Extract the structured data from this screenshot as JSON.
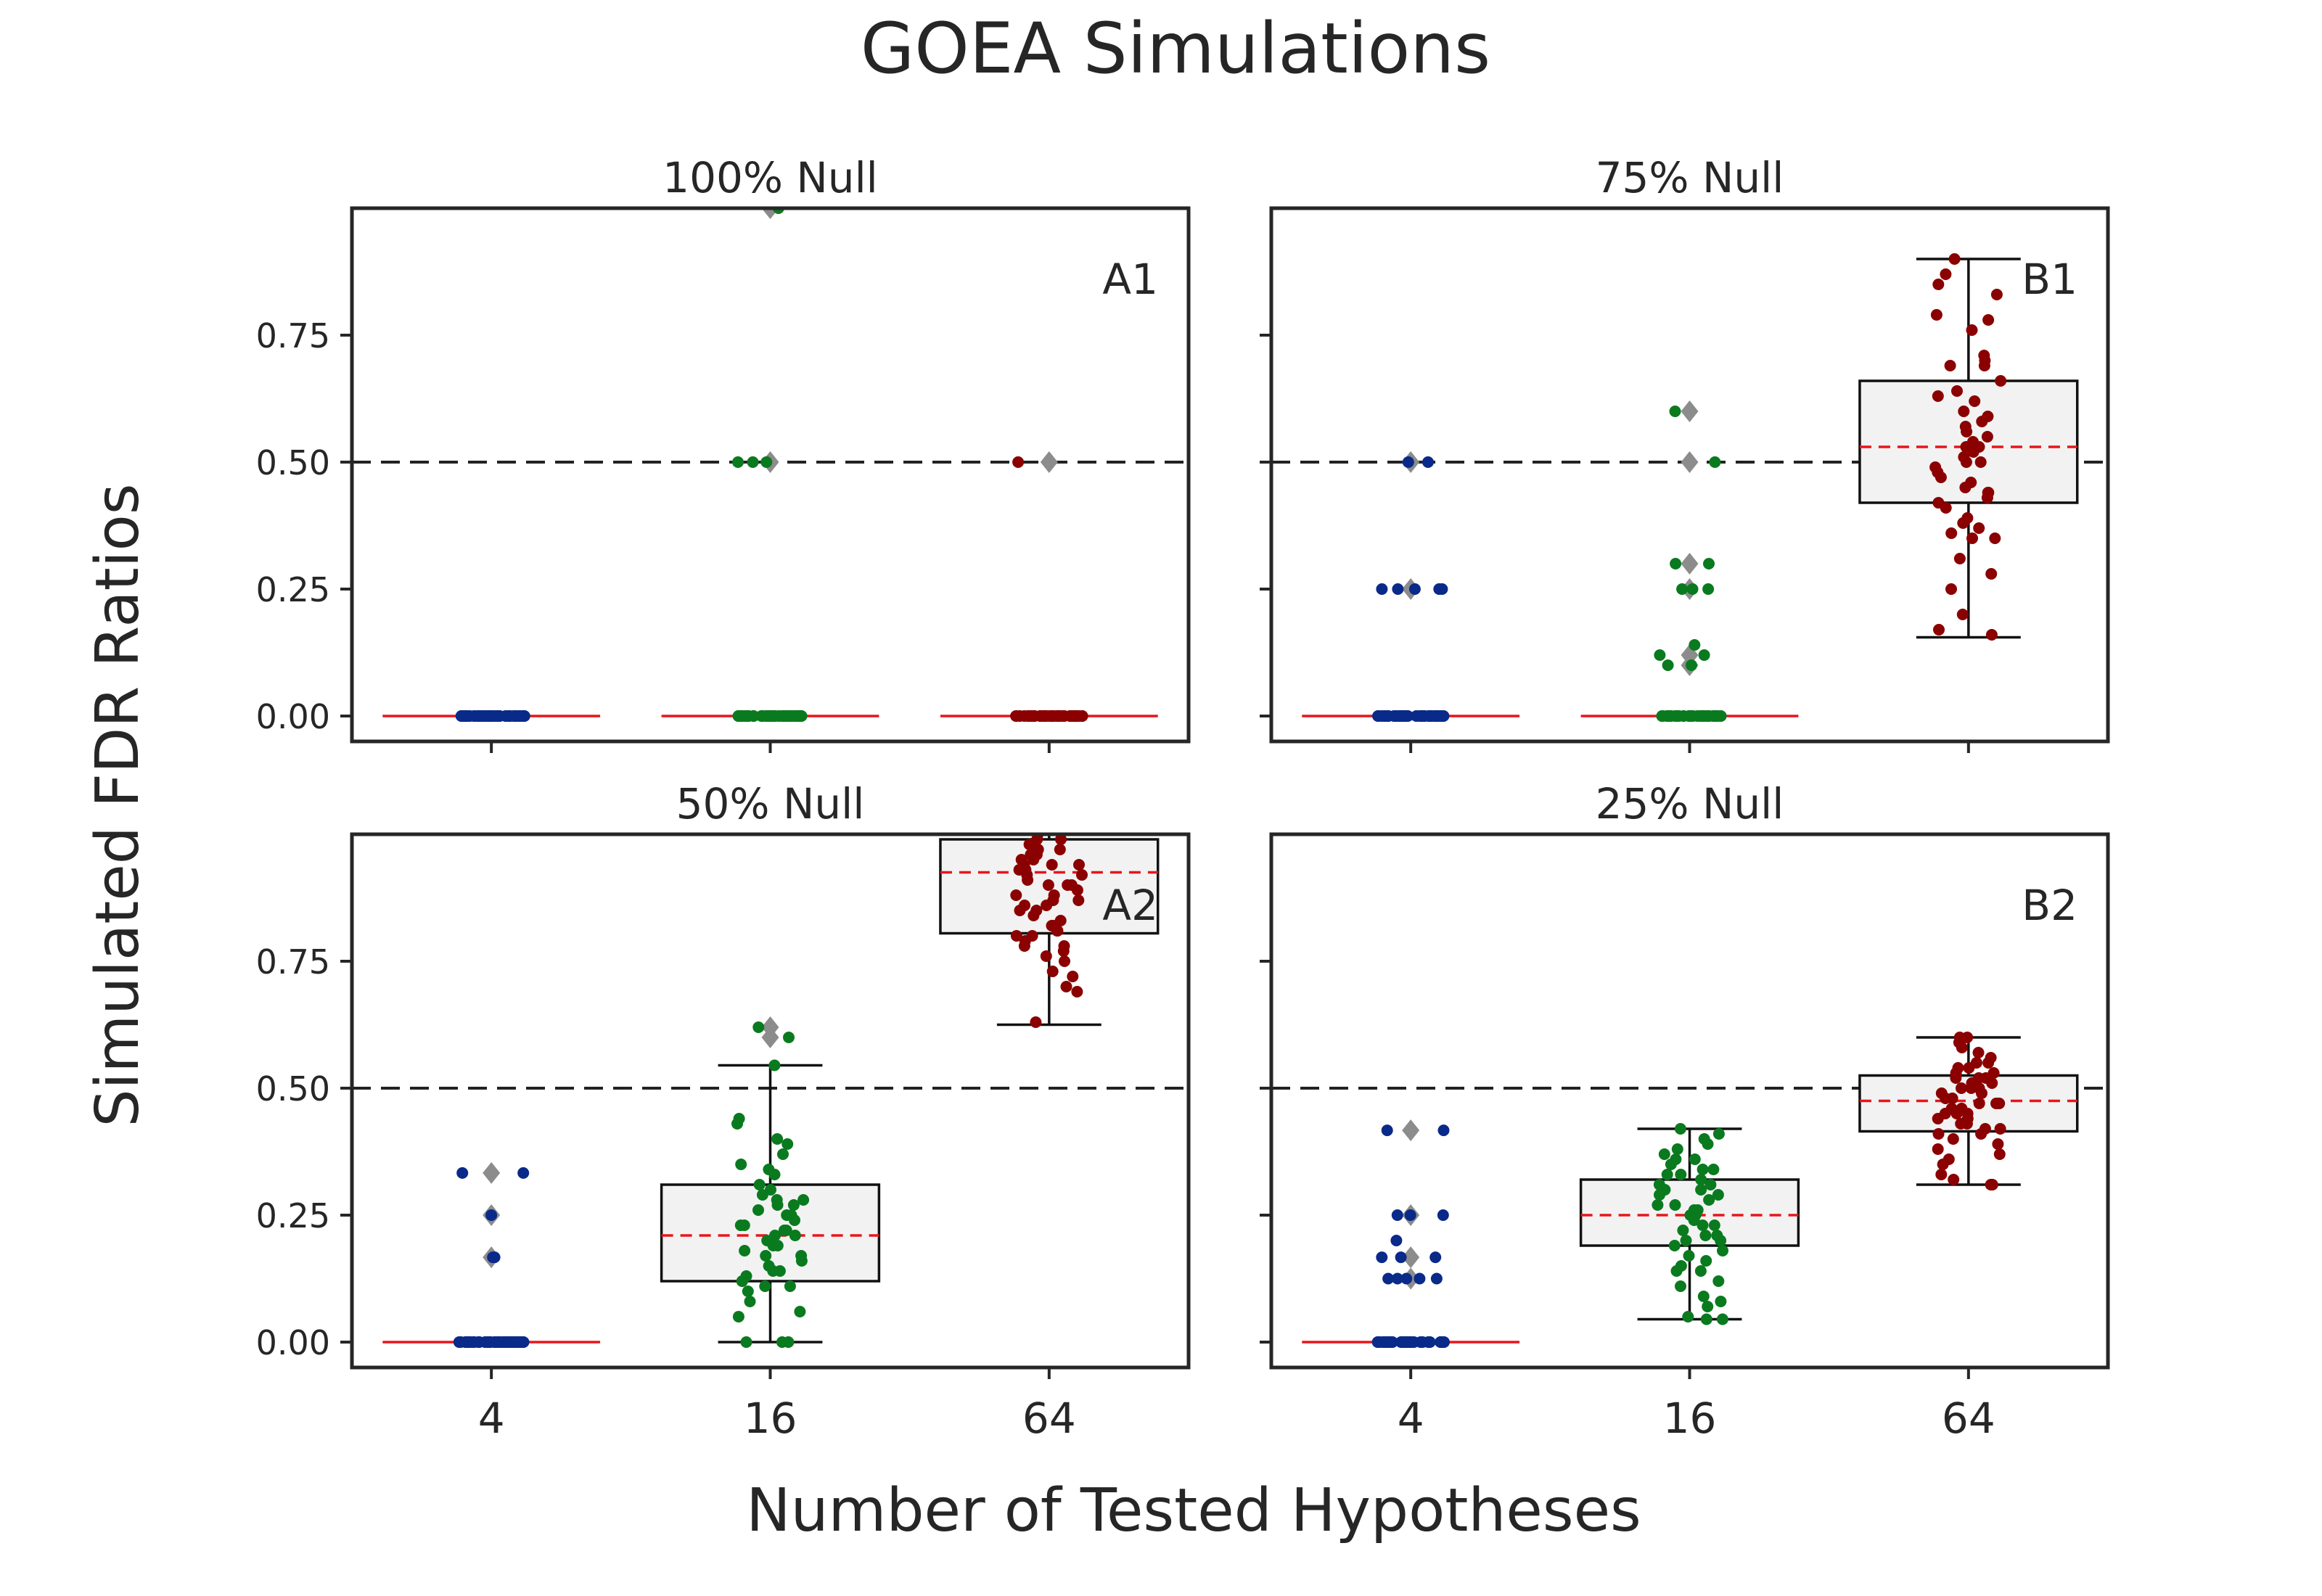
{
  "chart_data": {
    "type": "box",
    "title": "GOEA Simulations",
    "xlabel": "Number of Tested Hypotheses",
    "ylabel": "Simulated FDR Ratios",
    "categories": [
      "4",
      "16",
      "64"
    ],
    "y_ticks": [
      "0.00",
      "0.25",
      "0.50",
      "0.75"
    ],
    "ylim": [
      -0.05,
      1.0
    ],
    "reference_line": 0.5,
    "colors": {
      "4": "#0a2a8a",
      "16": "#0a7a1f",
      "64": "#8b0000",
      "median": "#e8151b",
      "box_fill": "#f2f2f2",
      "outlier": "#8c8c8c",
      "reference": "#222222"
    },
    "panels": [
      {
        "title": "100% Null",
        "label": "A1",
        "groups": [
          {
            "category": "4",
            "box": null,
            "points": [
              0,
              0,
              0,
              0,
              0,
              0,
              0,
              0,
              0,
              0,
              0,
              0,
              0,
              0,
              0,
              0,
              0,
              0,
              0,
              0,
              0,
              0,
              0,
              0,
              0,
              0,
              0,
              0,
              0,
              0,
              0,
              0,
              0,
              0,
              0,
              0,
              0,
              0,
              0,
              0,
              0,
              0,
              0,
              0,
              0,
              0,
              0,
              0,
              0,
              0
            ],
            "outliers": []
          },
          {
            "category": "16",
            "box": null,
            "points": [
              0,
              0,
              0,
              0,
              0,
              0,
              0,
              0,
              0,
              0,
              0,
              0,
              0,
              0,
              0,
              0,
              0,
              0,
              0,
              0,
              0,
              0,
              0,
              0,
              0,
              0,
              0,
              0,
              0,
              0,
              0,
              0,
              0,
              0,
              0,
              0,
              0,
              0,
              0,
              0,
              0,
              0,
              0,
              0,
              0,
              0,
              1.0,
              0.5,
              0.5,
              0.5
            ],
            "outliers": [
              1.0,
              0.5
            ]
          },
          {
            "category": "64",
            "box": null,
            "points": [
              0,
              0,
              0,
              0,
              0,
              0,
              0,
              0,
              0,
              0,
              0,
              0,
              0,
              0,
              0,
              0,
              0,
              0,
              0,
              0,
              0,
              0,
              0,
              0,
              0,
              0,
              0,
              0,
              0,
              0,
              0,
              0,
              0,
              0,
              0,
              0,
              0,
              0,
              0,
              0,
              0,
              0,
              0,
              0,
              0,
              0,
              0,
              0,
              0,
              0.5
            ],
            "outliers": [
              0.5
            ]
          }
        ]
      },
      {
        "title": "75% Null",
        "label": "B1",
        "groups": [
          {
            "category": "4",
            "box": null,
            "points": [
              0,
              0,
              0,
              0,
              0,
              0,
              0,
              0,
              0,
              0,
              0,
              0,
              0,
              0,
              0,
              0,
              0,
              0,
              0,
              0,
              0,
              0,
              0,
              0,
              0,
              0,
              0,
              0,
              0,
              0,
              0,
              0,
              0,
              0,
              0,
              0,
              0,
              0,
              0,
              0,
              0,
              0,
              0,
              0.25,
              0.25,
              0.25,
              0.25,
              0.25,
              0.5,
              0.5
            ],
            "outliers": [
              0.5,
              0.25
            ]
          },
          {
            "category": "16",
            "box": null,
            "points": [
              0,
              0,
              0,
              0,
              0,
              0,
              0,
              0,
              0,
              0,
              0,
              0,
              0,
              0,
              0,
              0,
              0,
              0,
              0,
              0,
              0,
              0,
              0,
              0,
              0,
              0,
              0,
              0,
              0,
              0,
              0,
              0,
              0,
              0,
              0,
              0,
              0,
              0,
              0.6,
              0.5,
              0.3,
              0.3,
              0.25,
              0.25,
              0.14,
              0.12,
              0.12,
              0.1,
              0.1,
              0.25
            ],
            "outliers": [
              0.6,
              0.5,
              0.3,
              0.25,
              0.12,
              0.1
            ]
          },
          {
            "category": "64",
            "box": {
              "q1": 0.42,
              "median": 0.53,
              "q3": 0.66,
              "whisker_low": 0.155,
              "whisker_high": 0.9
            },
            "points": [
              0.9,
              0.87,
              0.85,
              0.83,
              0.79,
              0.78,
              0.76,
              0.71,
              0.7,
              0.69,
              0.69,
              0.66,
              0.64,
              0.63,
              0.6,
              0.58,
              0.57,
              0.56,
              0.55,
              0.54,
              0.53,
              0.53,
              0.52,
              0.51,
              0.5,
              0.49,
              0.47,
              0.46,
              0.45,
              0.44,
              0.43,
              0.42,
              0.41,
              0.39,
              0.38,
              0.37,
              0.36,
              0.35,
              0.35,
              0.31,
              0.25,
              0.2,
              0.17,
              0.16,
              0.28,
              0.48,
              0.5,
              0.59,
              0.62,
              0.44
            ],
            "outliers": []
          }
        ]
      },
      {
        "title": "50% Null",
        "label": "A2",
        "groups": [
          {
            "category": "4",
            "box": null,
            "points": [
              0,
              0,
              0,
              0,
              0,
              0,
              0,
              0,
              0,
              0,
              0,
              0,
              0,
              0,
              0,
              0,
              0,
              0,
              0,
              0,
              0,
              0,
              0,
              0,
              0,
              0,
              0,
              0,
              0,
              0,
              0,
              0,
              0,
              0,
              0,
              0,
              0,
              0,
              0,
              0,
              0,
              0,
              0,
              0,
              0,
              0.333,
              0.333,
              0.25,
              0.167,
              0.167
            ],
            "outliers": [
              0.333,
              0.25,
              0.167
            ]
          },
          {
            "category": "16",
            "box": {
              "q1": 0.12,
              "median": 0.21,
              "q3": 0.31,
              "whisker_low": 0.0,
              "whisker_high": 0.545
            },
            "points": [
              0.62,
              0.6,
              0.545,
              0.44,
              0.43,
              0.4,
              0.39,
              0.37,
              0.34,
              0.33,
              0.31,
              0.3,
              0.29,
              0.28,
              0.27,
              0.27,
              0.26,
              0.25,
              0.24,
              0.23,
              0.22,
              0.22,
              0.21,
              0.2,
              0.19,
              0.18,
              0.17,
              0.16,
              0.15,
              0.14,
              0.13,
              0.12,
              0.12,
              0.11,
              0.11,
              0.1,
              0.08,
              0.06,
              0.05,
              0.0,
              0.0,
              0.0,
              0.35,
              0.28,
              0.21,
              0.17,
              0.25,
              0.23,
              0.19,
              0.14
            ],
            "outliers": [
              0.62,
              0.6
            ]
          },
          {
            "category": "64",
            "box": {
              "q1": 0.805,
              "median": 0.925,
              "q3": 0.99,
              "whisker_low": 0.625,
              "whisker_high": 1.0
            },
            "points": [
              1.0,
              0.99,
              0.98,
              0.97,
              0.97,
              0.96,
              0.95,
              0.95,
              0.94,
              0.94,
              0.93,
              0.93,
              0.92,
              0.91,
              0.9,
              0.9,
              0.89,
              0.88,
              0.87,
              0.86,
              0.86,
              0.85,
              0.84,
              0.83,
              0.82,
              0.81,
              0.81,
              0.8,
              0.8,
              0.79,
              0.78,
              0.77,
              0.76,
              0.75,
              0.73,
              0.72,
              0.7,
              0.69,
              0.63,
              0.92,
              0.96,
              0.98,
              0.88,
              0.85,
              0.9,
              0.94,
              0.82,
              0.78,
              0.99,
              0.87
            ],
            "outliers": []
          }
        ]
      },
      {
        "title": "25% Null",
        "label": "B2",
        "groups": [
          {
            "category": "4",
            "box": null,
            "points": [
              0,
              0,
              0,
              0,
              0,
              0,
              0,
              0,
              0,
              0,
              0,
              0,
              0,
              0,
              0,
              0,
              0,
              0,
              0,
              0,
              0,
              0,
              0,
              0,
              0,
              0,
              0,
              0,
              0,
              0,
              0,
              0,
              0,
              0,
              0,
              0,
              0.417,
              0.417,
              0.25,
              0.25,
              0.25,
              0.167,
              0.167,
              0.167,
              0.125,
              0.125,
              0.125,
              0.125,
              0.125,
              0.2
            ],
            "outliers": [
              0.417,
              0.25,
              0.167,
              0.125
            ]
          },
          {
            "category": "16",
            "box": {
              "q1": 0.19,
              "median": 0.25,
              "q3": 0.32,
              "whisker_low": 0.045,
              "whisker_high": 0.42
            },
            "points": [
              0.42,
              0.41,
              0.4,
              0.39,
              0.38,
              0.37,
              0.36,
              0.35,
              0.34,
              0.33,
              0.33,
              0.32,
              0.31,
              0.3,
              0.3,
              0.29,
              0.28,
              0.27,
              0.27,
              0.26,
              0.25,
              0.25,
              0.24,
              0.23,
              0.22,
              0.21,
              0.2,
              0.2,
              0.19,
              0.18,
              0.17,
              0.16,
              0.15,
              0.14,
              0.12,
              0.11,
              0.09,
              0.08,
              0.07,
              0.05,
              0.045,
              0.045,
              0.36,
              0.31,
              0.26,
              0.23,
              0.21,
              0.29,
              0.34,
              0.14
            ],
            "outliers": []
          },
          {
            "category": "64",
            "box": {
              "q1": 0.415,
              "median": 0.475,
              "q3": 0.525,
              "whisker_low": 0.31,
              "whisker_high": 0.6
            },
            "points": [
              0.6,
              0.6,
              0.59,
              0.58,
              0.57,
              0.56,
              0.55,
              0.55,
              0.54,
              0.54,
              0.53,
              0.53,
              0.52,
              0.52,
              0.51,
              0.51,
              0.5,
              0.5,
              0.49,
              0.49,
              0.48,
              0.48,
              0.47,
              0.47,
              0.46,
              0.46,
              0.45,
              0.45,
              0.44,
              0.44,
              0.43,
              0.43,
              0.42,
              0.42,
              0.41,
              0.41,
              0.4,
              0.39,
              0.38,
              0.37,
              0.36,
              0.35,
              0.33,
              0.32,
              0.31,
              0.31,
              0.5,
              0.47,
              0.52,
              0.45
            ],
            "outliers": []
          }
        ]
      }
    ]
  }
}
